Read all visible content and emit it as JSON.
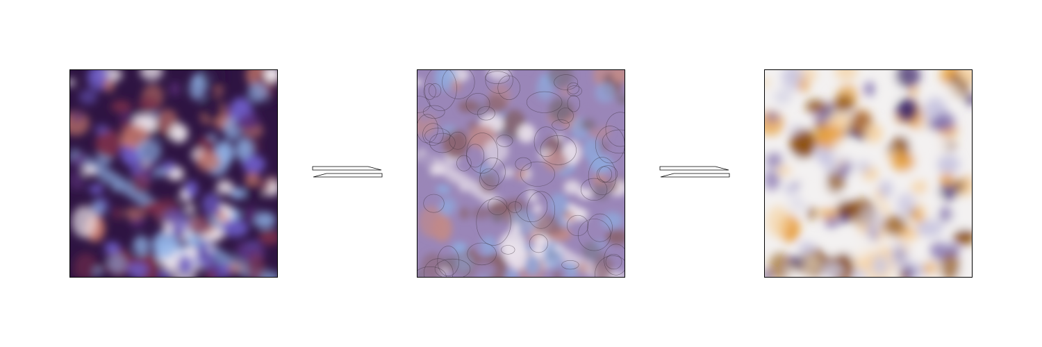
{
  "panels": [
    {
      "id": "left",
      "colormap": "twilight-shifted-dark",
      "palette": [
        "#2e1442",
        "#5a2e78",
        "#6c5bc4",
        "#8fb2e6",
        "#efe7ee",
        "#c97a6c",
        "#7a2f4b"
      ]
    },
    {
      "id": "middle",
      "colormap": "twilight-muted",
      "palette": [
        "#7e6f82",
        "#9a86b8",
        "#8fa8dc",
        "#e8e0ea",
        "#c08a8a",
        "#8a6470"
      ]
    },
    {
      "id": "right",
      "colormap": "purple-orange",
      "palette": [
        "#3b2468",
        "#7a66a8",
        "#c9c6e0",
        "#f3f1f1",
        "#f5d3a4",
        "#e6982c",
        "#8a4d0a"
      ]
    }
  ],
  "arrows": [
    {
      "id": "arrow-1",
      "type": "equilibrium-harpoons"
    },
    {
      "id": "arrow-2",
      "type": "equilibrium-harpoons"
    }
  ],
  "colors": {
    "line": "#000000",
    "background": "#ffffff",
    "fill": "#ffffff"
  }
}
